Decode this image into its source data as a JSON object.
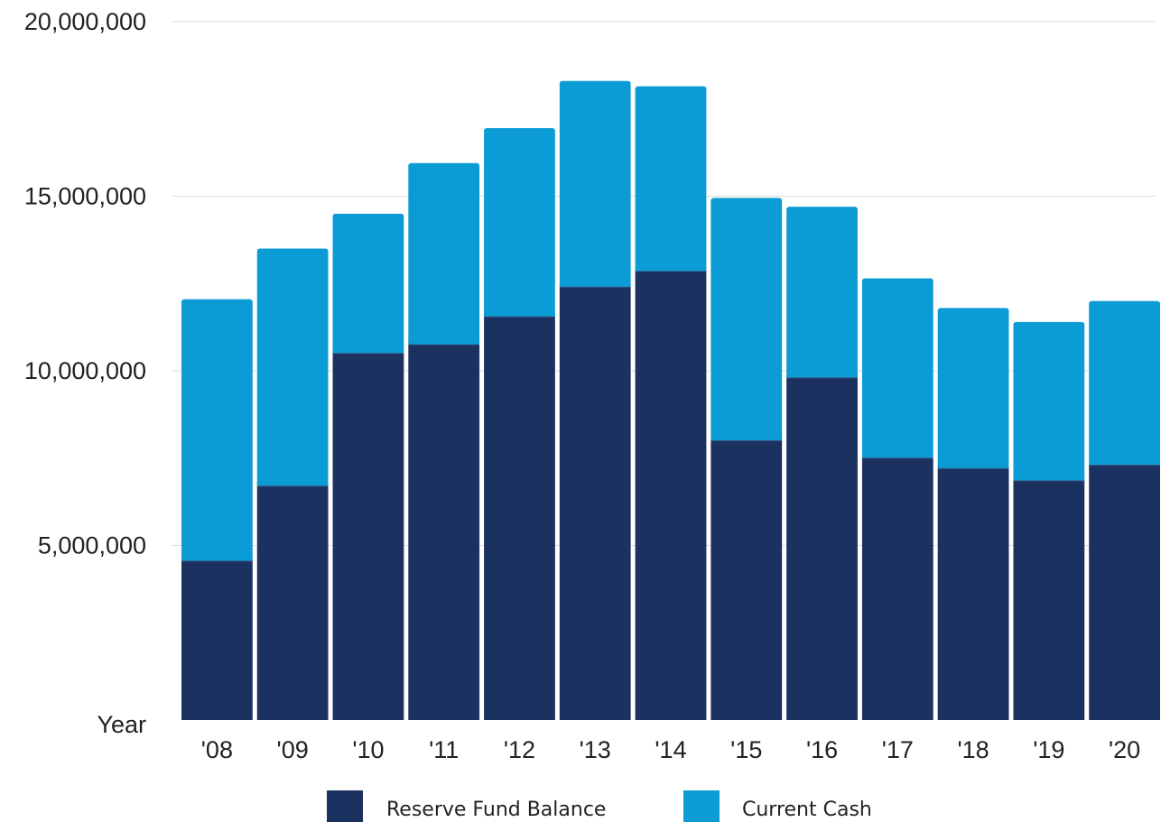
{
  "chart_data": {
    "type": "bar",
    "stacked": true,
    "title": "",
    "xlabel": "Year",
    "ylabel": "",
    "ylim": [
      0,
      20000000
    ],
    "y_ticks": [
      "20,000,000",
      "15,000,000",
      "10,000,000",
      "5,000,000"
    ],
    "y_tick_values": [
      20000000,
      15000000,
      10000000,
      5000000
    ],
    "grid": true,
    "legend_position": "bottom",
    "categories": [
      "'08",
      "'09",
      "'10",
      "'11",
      "'12",
      "'13",
      "'14",
      "'15",
      "'16",
      "'17",
      "'18",
      "'19",
      "'20"
    ],
    "series": [
      {
        "name": "Reserve Fund Balance",
        "color": "#1b3160",
        "values": [
          4550000,
          6700000,
          10500000,
          10750000,
          11550000,
          12400000,
          12850000,
          8000000,
          9800000,
          7500000,
          7200000,
          6850000,
          7300000
        ]
      },
      {
        "name": "Current Cash",
        "color": "#0b9bd5",
        "values": [
          7500000,
          6800000,
          4000000,
          5200000,
          5400000,
          5900000,
          5300000,
          6950000,
          4900000,
          5150000,
          4600000,
          4550000,
          4700000
        ]
      }
    ]
  }
}
